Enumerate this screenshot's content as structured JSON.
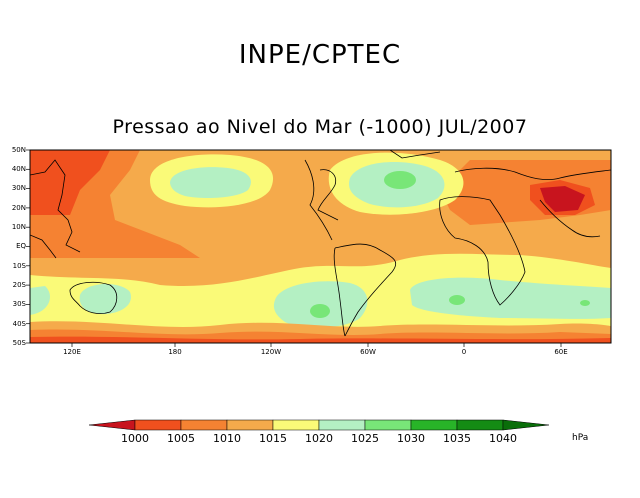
{
  "title": "INPE/CPTEC",
  "subtitle": "Pressao ao Nivel do Mar (-1000) JUL/2007",
  "lat_labels": [
    "50N",
    "40N",
    "30N",
    "20N",
    "10N",
    "EQ",
    "10S",
    "20S",
    "30S",
    "40S",
    "50S"
  ],
  "lon_labels": [
    "120E",
    "180",
    "120W",
    "60W",
    "0",
    "60E"
  ],
  "colorbar": {
    "levels": [
      "1000",
      "1005",
      "1010",
      "1015",
      "1020",
      "1025",
      "1030",
      "1035",
      "1040"
    ],
    "unit": "hPa",
    "colors": [
      "#c8141e",
      "#f0501e",
      "#f58232",
      "#f5aa4b",
      "#fafa78",
      "#b4f0c3",
      "#78e678",
      "#28b428",
      "#148c14",
      "#0a6e0a"
    ]
  }
}
